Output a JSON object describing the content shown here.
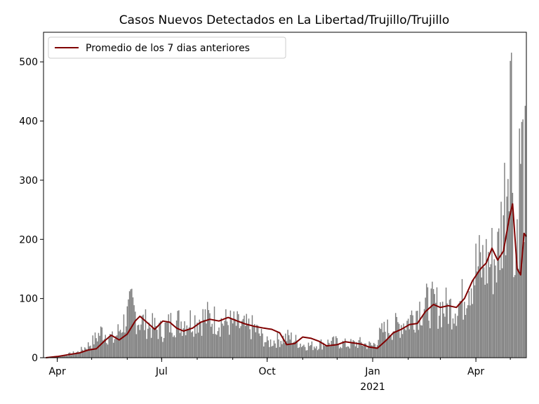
{
  "chart_data": {
    "type": "bar",
    "title": "Casos Nuevos Detectados en La Libertad/Trujillo/Trujillo",
    "xlabel": "",
    "ylabel": "",
    "ylim": [
      0,
      550
    ],
    "y_ticks": [
      0,
      100,
      200,
      300,
      400,
      500
    ],
    "x_range": [
      "2020-03-20",
      "2021-05-15"
    ],
    "x_ticks": [
      {
        "date": "2020-04-01",
        "label": "Apr",
        "sub": ""
      },
      {
        "date": "2020-07-01",
        "label": "Jul",
        "sub": ""
      },
      {
        "date": "2020-10-01",
        "label": "Oct",
        "sub": ""
      },
      {
        "date": "2021-01-01",
        "label": "Jan",
        "sub": "2021"
      },
      {
        "date": "2021-04-01",
        "label": "Apr",
        "sub": ""
      }
    ],
    "legend": {
      "position": "top-left",
      "entries": [
        "Promedio de los 7 dias anteriores"
      ]
    },
    "colors": {
      "bars": "#808080",
      "line": "#800000"
    },
    "series": [
      {
        "type": "bar",
        "values_note": "daily new cases",
        "points": [
          [
            "2020-03-20",
            0
          ],
          [
            "2020-04-05",
            3
          ],
          [
            "2020-04-20",
            10
          ],
          [
            "2020-05-01",
            25
          ],
          [
            "2020-05-10",
            45
          ],
          [
            "2020-05-20",
            30
          ],
          [
            "2020-06-01",
            70
          ],
          [
            "2020-06-05",
            88
          ],
          [
            "2020-06-10",
            65
          ],
          [
            "2020-06-20",
            55
          ],
          [
            "2020-07-01",
            45
          ],
          [
            "2020-07-10",
            60
          ],
          [
            "2020-07-20",
            62
          ],
          [
            "2020-08-01",
            65
          ],
          [
            "2020-08-10",
            68
          ],
          [
            "2020-08-20",
            62
          ],
          [
            "2020-09-01",
            58
          ],
          [
            "2020-09-10",
            52
          ],
          [
            "2020-09-20",
            50
          ],
          [
            "2020-10-01",
            25
          ],
          [
            "2020-10-10",
            30
          ],
          [
            "2020-10-20",
            35
          ],
          [
            "2020-11-01",
            22
          ],
          [
            "2020-11-10",
            20
          ],
          [
            "2020-11-20",
            25
          ],
          [
            "2020-12-01",
            26
          ],
          [
            "2020-12-10",
            22
          ],
          [
            "2020-12-20",
            25
          ],
          [
            "2021-01-01",
            20
          ],
          [
            "2021-01-10",
            45
          ],
          [
            "2021-01-20",
            52
          ],
          [
            "2021-02-01",
            62
          ],
          [
            "2021-02-10",
            85
          ],
          [
            "2021-02-20",
            90
          ],
          [
            "2021-03-01",
            85
          ],
          [
            "2021-03-10",
            84
          ],
          [
            "2021-03-20",
            95
          ],
          [
            "2021-03-25",
            130
          ],
          [
            "2021-04-01",
            150
          ],
          [
            "2021-04-10",
            160
          ],
          [
            "2021-04-20",
            170
          ],
          [
            "2021-04-28",
            300
          ],
          [
            "2021-05-01",
            525
          ],
          [
            "2021-05-05",
            140
          ],
          [
            "2021-05-10",
            350
          ],
          [
            "2021-05-14",
            300
          ]
        ]
      },
      {
        "type": "line",
        "name": "Promedio de los 7 dias anteriores",
        "points": [
          [
            "2020-03-22",
            0
          ],
          [
            "2020-04-01",
            2
          ],
          [
            "2020-04-10",
            5
          ],
          [
            "2020-04-20",
            8
          ],
          [
            "2020-04-28",
            13
          ],
          [
            "2020-05-05",
            15
          ],
          [
            "2020-05-12",
            28
          ],
          [
            "2020-05-18",
            38
          ],
          [
            "2020-05-25",
            30
          ],
          [
            "2020-06-01",
            40
          ],
          [
            "2020-06-08",
            62
          ],
          [
            "2020-06-12",
            70
          ],
          [
            "2020-06-18",
            60
          ],
          [
            "2020-06-25",
            48
          ],
          [
            "2020-07-02",
            62
          ],
          [
            "2020-07-08",
            60
          ],
          [
            "2020-07-14",
            50
          ],
          [
            "2020-07-20",
            45
          ],
          [
            "2020-07-28",
            50
          ],
          [
            "2020-08-04",
            60
          ],
          [
            "2020-08-12",
            65
          ],
          [
            "2020-08-20",
            62
          ],
          [
            "2020-08-28",
            68
          ],
          [
            "2020-09-05",
            62
          ],
          [
            "2020-09-12",
            57
          ],
          [
            "2020-09-20",
            53
          ],
          [
            "2020-09-28",
            50
          ],
          [
            "2020-10-05",
            48
          ],
          [
            "2020-10-12",
            42
          ],
          [
            "2020-10-18",
            22
          ],
          [
            "2020-10-25",
            24
          ],
          [
            "2020-11-01",
            35
          ],
          [
            "2020-11-08",
            33
          ],
          [
            "2020-11-15",
            28
          ],
          [
            "2020-11-22",
            20
          ],
          [
            "2020-12-01",
            22
          ],
          [
            "2020-12-08",
            27
          ],
          [
            "2020-12-15",
            25
          ],
          [
            "2020-12-22",
            23
          ],
          [
            "2020-12-29",
            18
          ],
          [
            "2021-01-05",
            16
          ],
          [
            "2021-01-12",
            28
          ],
          [
            "2021-01-19",
            42
          ],
          [
            "2021-01-26",
            48
          ],
          [
            "2021-02-02",
            56
          ],
          [
            "2021-02-09",
            58
          ],
          [
            "2021-02-16",
            78
          ],
          [
            "2021-02-23",
            90
          ],
          [
            "2021-03-01",
            85
          ],
          [
            "2021-03-08",
            88
          ],
          [
            "2021-03-15",
            85
          ],
          [
            "2021-03-22",
            100
          ],
          [
            "2021-03-29",
            130
          ],
          [
            "2021-04-05",
            150
          ],
          [
            "2021-04-10",
            160
          ],
          [
            "2021-04-15",
            185
          ],
          [
            "2021-04-20",
            165
          ],
          [
            "2021-04-25",
            180
          ],
          [
            "2021-04-30",
            235
          ],
          [
            "2021-05-03",
            260
          ],
          [
            "2021-05-07",
            150
          ],
          [
            "2021-05-10",
            140
          ],
          [
            "2021-05-13",
            210
          ],
          [
            "2021-05-15",
            205
          ]
        ]
      }
    ]
  }
}
